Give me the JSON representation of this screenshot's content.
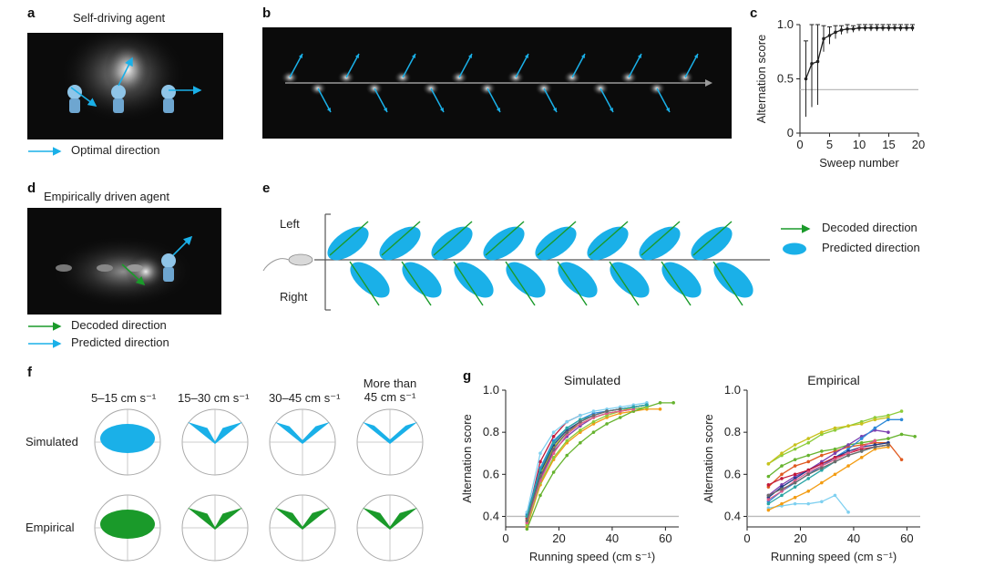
{
  "panels": {
    "a": {
      "label": "a",
      "title": "Self-driving agent",
      "legend": [
        "Optimal direction"
      ]
    },
    "b": {
      "label": "b"
    },
    "c": {
      "label": "c"
    },
    "d": {
      "label": "d",
      "title": "Empirically driven agent",
      "legend": [
        "Decoded direction",
        "Predicted direction"
      ]
    },
    "e": {
      "label": "e",
      "side_labels": [
        "Left",
        "Right"
      ],
      "legend": [
        "Decoded direction",
        "Predicted direction"
      ]
    },
    "f": {
      "label": "f",
      "rows": [
        "Simulated",
        "Empirical"
      ],
      "cols": [
        "5–15 cm s⁻¹",
        "15–30 cm s⁻¹",
        "30–45 cm s⁻¹",
        "More than 45 cm s⁻¹"
      ]
    },
    "g": {
      "label": "g"
    }
  },
  "colors": {
    "blue": "#1ab0e8",
    "green": "#1a9a2a",
    "dark": "#0b0b0b"
  },
  "chart_data": [
    {
      "id": "c",
      "type": "line",
      "xlabel": "Sweep number",
      "ylabel": "Alternation score",
      "xlim": [
        0,
        20
      ],
      "ylim": [
        0,
        1.0
      ],
      "xticks": [
        0,
        5,
        10,
        15,
        20
      ],
      "yticks": [
        0,
        0.5,
        1.0
      ],
      "yticklabels": [
        "0",
        "0.5",
        "1.0"
      ],
      "reference_line": 0.4,
      "x": [
        1,
        2,
        3,
        4,
        5,
        6,
        7,
        8,
        9,
        10,
        11,
        12,
        13,
        14,
        15,
        16,
        17,
        18,
        19
      ],
      "y": [
        0.5,
        0.64,
        0.66,
        0.87,
        0.9,
        0.93,
        0.95,
        0.96,
        0.96,
        0.97,
        0.97,
        0.97,
        0.97,
        0.97,
        0.97,
        0.97,
        0.97,
        0.97,
        0.97
      ],
      "err": [
        0.35,
        0.4,
        0.4,
        0.12,
        0.08,
        0.06,
        0.04,
        0.04,
        0.03,
        0.03,
        0.03,
        0.03,
        0.03,
        0.03,
        0.03,
        0.03,
        0.03,
        0.03,
        0.03
      ]
    },
    {
      "id": "g-simulated",
      "type": "line",
      "title": "Simulated",
      "xlabel": "Running speed (cm s⁻¹)",
      "ylabel": "Alternation score",
      "xlim": [
        0,
        65
      ],
      "ylim": [
        0.35,
        1.0
      ],
      "xticks": [
        0,
        20,
        40,
        60
      ],
      "yticks": [
        0.4,
        0.6,
        0.8,
        1.0
      ],
      "yticklabels": [
        "0.4",
        "0.6",
        "0.8",
        "1.0"
      ],
      "reference_line": 0.4,
      "series": [
        {
          "color": "#c2183a",
          "x": [
            8,
            13,
            18,
            23,
            28
          ],
          "y": [
            0.39,
            0.66,
            0.78,
            0.85,
            0.88
          ]
        },
        {
          "color": "#f39c12",
          "x": [
            8,
            13,
            18,
            23,
            28,
            33,
            38,
            43,
            48,
            53,
            58
          ],
          "y": [
            0.35,
            0.55,
            0.67,
            0.75,
            0.8,
            0.84,
            0.87,
            0.89,
            0.9,
            0.91,
            0.91
          ]
        },
        {
          "color": "#7b3fb0",
          "x": [
            8,
            13,
            18,
            23,
            28,
            33,
            38,
            43,
            48,
            53
          ],
          "y": [
            0.37,
            0.58,
            0.71,
            0.78,
            0.83,
            0.87,
            0.89,
            0.9,
            0.91,
            0.92
          ]
        },
        {
          "color": "#2e8ad8",
          "x": [
            8,
            13,
            18,
            23,
            28,
            33,
            38,
            43,
            48,
            53
          ],
          "y": [
            0.41,
            0.63,
            0.76,
            0.82,
            0.86,
            0.89,
            0.9,
            0.91,
            0.92,
            0.93
          ]
        },
        {
          "color": "#66b32e",
          "x": [
            8,
            13,
            18,
            23,
            28,
            33,
            38,
            43,
            48,
            53,
            58,
            63
          ],
          "y": [
            0.34,
            0.5,
            0.61,
            0.69,
            0.75,
            0.8,
            0.84,
            0.87,
            0.9,
            0.92,
            0.94,
            0.94
          ]
        },
        {
          "color": "#8dcc3a",
          "x": [
            8,
            13,
            18,
            23,
            28,
            33,
            38,
            43,
            48,
            53
          ],
          "y": [
            0.36,
            0.56,
            0.68,
            0.76,
            0.81,
            0.85,
            0.88,
            0.9,
            0.91,
            0.92
          ]
        },
        {
          "color": "#c8c21c",
          "x": [
            8,
            13,
            18,
            23,
            28,
            33,
            38,
            43,
            48,
            53
          ],
          "y": [
            0.38,
            0.6,
            0.73,
            0.8,
            0.84,
            0.87,
            0.89,
            0.9,
            0.92,
            0.93
          ]
        },
        {
          "color": "#7fd0f0",
          "x": [
            8,
            13,
            18,
            23,
            28,
            33,
            38,
            43,
            48,
            53
          ],
          "y": [
            0.42,
            0.7,
            0.8,
            0.85,
            0.88,
            0.9,
            0.91,
            0.92,
            0.93,
            0.94
          ]
        },
        {
          "color": "#1f3a8a",
          "x": [
            8,
            13,
            18,
            23,
            28,
            33,
            38,
            43,
            48,
            53
          ],
          "y": [
            0.4,
            0.61,
            0.74,
            0.81,
            0.85,
            0.88,
            0.9,
            0.91,
            0.92,
            0.93
          ]
        },
        {
          "color": "#e05a8a",
          "x": [
            8,
            13,
            18,
            23,
            28,
            33,
            38,
            43,
            48
          ],
          "y": [
            0.37,
            0.57,
            0.7,
            0.79,
            0.84,
            0.87,
            0.89,
            0.9,
            0.91
          ]
        },
        {
          "color": "#2aa5a5",
          "x": [
            8,
            13,
            18,
            23,
            28,
            33,
            38,
            43,
            48,
            53
          ],
          "y": [
            0.4,
            0.62,
            0.75,
            0.82,
            0.86,
            0.88,
            0.9,
            0.91,
            0.92,
            0.93
          ]
        },
        {
          "color": "#6b6b6b",
          "x": [
            8,
            13,
            18,
            23,
            28,
            33,
            38,
            43
          ],
          "y": [
            0.38,
            0.59,
            0.72,
            0.8,
            0.85,
            0.88,
            0.9,
            0.91
          ]
        }
      ]
    },
    {
      "id": "g-empirical",
      "type": "line",
      "title": "Empirical",
      "xlabel": "Running speed (cm s⁻¹)",
      "ylabel": "Alternation score",
      "xlim": [
        0,
        65
      ],
      "ylim": [
        0.35,
        1.0
      ],
      "xticks": [
        0,
        20,
        40,
        60
      ],
      "yticks": [
        0.4,
        0.6,
        0.8,
        1.0
      ],
      "yticklabels": [
        "0.4",
        "0.6",
        "0.8",
        "1.0"
      ],
      "reference_line": 0.4,
      "series": [
        {
          "color": "#8dcc3a",
          "x": [
            8,
            13,
            18,
            23,
            28,
            33,
            38,
            43,
            48,
            53,
            58
          ],
          "y": [
            0.65,
            0.69,
            0.72,
            0.75,
            0.79,
            0.81,
            0.83,
            0.85,
            0.87,
            0.88,
            0.9
          ]
        },
        {
          "color": "#c8c21c",
          "x": [
            8,
            13,
            18,
            23,
            28,
            33,
            38,
            43,
            48,
            53
          ],
          "y": [
            0.65,
            0.7,
            0.74,
            0.77,
            0.8,
            0.82,
            0.83,
            0.84,
            0.86,
            0.87
          ]
        },
        {
          "color": "#7fd0f0",
          "x": [
            8,
            13,
            18,
            23,
            28,
            33,
            38
          ],
          "y": [
            0.44,
            0.45,
            0.46,
            0.46,
            0.47,
            0.5,
            0.42
          ]
        },
        {
          "color": "#f39c12",
          "x": [
            8,
            13,
            18,
            23,
            28,
            33,
            38,
            43,
            48,
            53
          ],
          "y": [
            0.43,
            0.46,
            0.49,
            0.52,
            0.56,
            0.6,
            0.64,
            0.68,
            0.72,
            0.73
          ]
        },
        {
          "color": "#e05a20",
          "x": [
            8,
            13,
            18,
            23,
            28,
            33,
            38,
            43,
            48,
            53,
            58
          ],
          "y": [
            0.54,
            0.6,
            0.64,
            0.66,
            0.69,
            0.71,
            0.73,
            0.74,
            0.75,
            0.75,
            0.67
          ]
        },
        {
          "color": "#66b32e",
          "x": [
            8,
            13,
            18,
            23,
            28,
            33,
            38,
            43,
            48,
            53,
            58,
            63
          ],
          "y": [
            0.59,
            0.64,
            0.67,
            0.69,
            0.71,
            0.72,
            0.74,
            0.75,
            0.76,
            0.77,
            0.79,
            0.78
          ]
        },
        {
          "color": "#7b3fb0",
          "x": [
            8,
            13,
            18,
            23,
            28,
            33,
            38,
            43,
            48,
            53
          ],
          "y": [
            0.5,
            0.55,
            0.59,
            0.62,
            0.66,
            0.7,
            0.74,
            0.78,
            0.81,
            0.8
          ]
        },
        {
          "color": "#2e8ad8",
          "x": [
            8,
            13,
            18,
            23,
            28,
            33,
            38,
            43,
            48,
            53,
            58
          ],
          "y": [
            0.47,
            0.52,
            0.56,
            0.6,
            0.64,
            0.68,
            0.72,
            0.77,
            0.82,
            0.86,
            0.86
          ]
        },
        {
          "color": "#1f3a8a",
          "x": [
            8,
            13,
            18,
            23,
            28,
            33,
            38,
            43,
            48,
            53
          ],
          "y": [
            0.49,
            0.54,
            0.58,
            0.62,
            0.65,
            0.68,
            0.71,
            0.73,
            0.74,
            0.75
          ]
        },
        {
          "color": "#c2183a",
          "x": [
            8,
            13,
            18,
            23,
            28,
            33,
            38,
            43,
            48,
            53
          ],
          "y": [
            0.55,
            0.58,
            0.6,
            0.62,
            0.65,
            0.68,
            0.7,
            0.72,
            0.73,
            0.74
          ]
        },
        {
          "color": "#2aa5a5",
          "x": [
            8,
            13,
            18,
            23,
            28,
            33,
            38,
            43,
            48,
            53
          ],
          "y": [
            0.46,
            0.5,
            0.54,
            0.58,
            0.62,
            0.66,
            0.69,
            0.71,
            0.73,
            0.74
          ]
        },
        {
          "color": "#e05a8a",
          "x": [
            8,
            13,
            18,
            23,
            28,
            33,
            38,
            43,
            48
          ],
          "y": [
            0.48,
            0.52,
            0.57,
            0.61,
            0.64,
            0.67,
            0.7,
            0.73,
            0.76
          ]
        },
        {
          "color": "#6b6b6b",
          "x": [
            8,
            13,
            18,
            23,
            28,
            33,
            38,
            43,
            48,
            53
          ],
          "y": [
            0.5,
            0.53,
            0.56,
            0.6,
            0.63,
            0.66,
            0.69,
            0.71,
            0.73,
            0.74
          ]
        }
      ]
    }
  ]
}
